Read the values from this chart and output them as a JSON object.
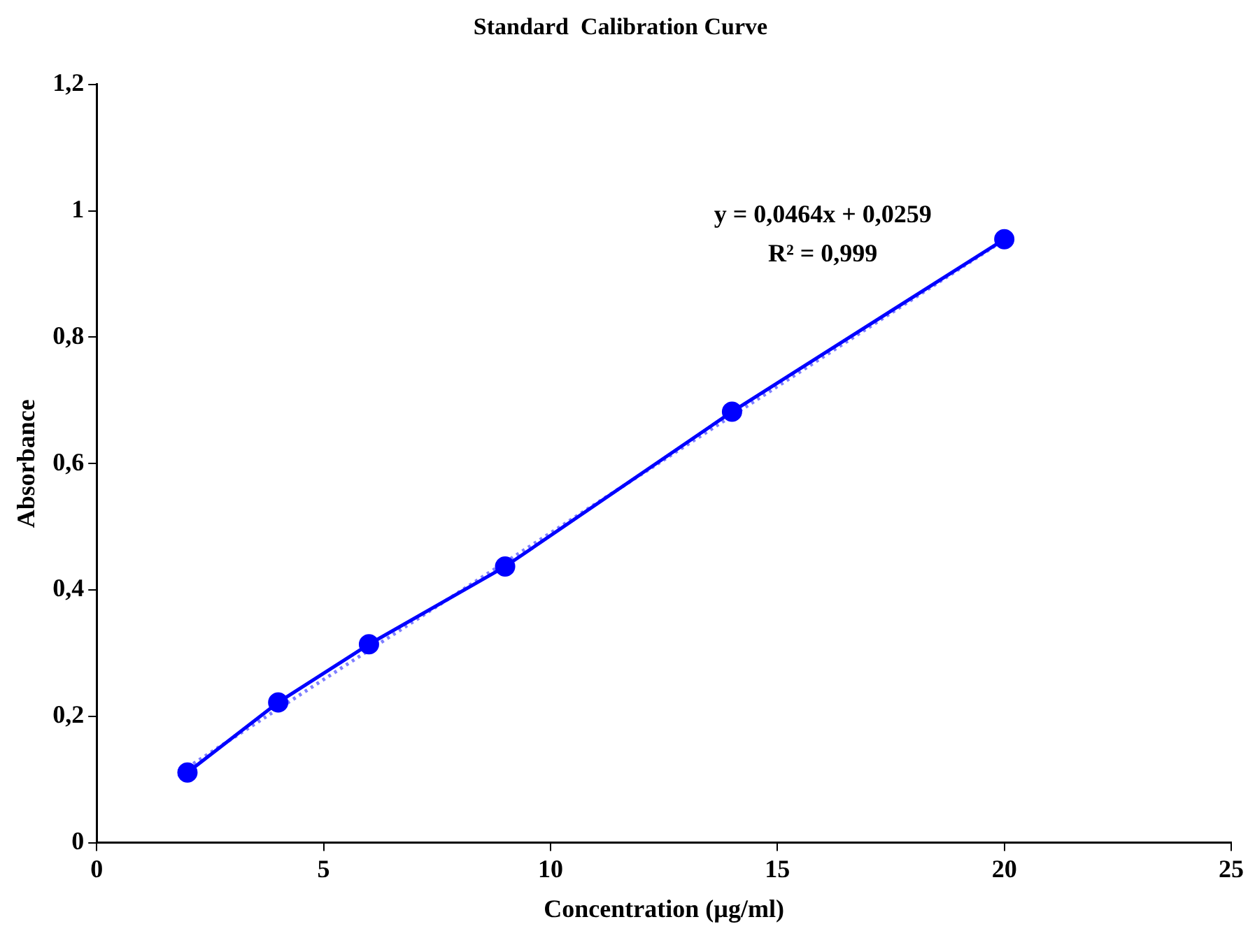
{
  "chart_data": {
    "type": "line",
    "title": "Standard  Calibration Curve",
    "xlabel": "Concentration (µg/ml)",
    "ylabel": "Absorbance",
    "xlim": [
      0,
      25
    ],
    "xticks": [
      0,
      5,
      10,
      15,
      20,
      25
    ],
    "ylim": [
      0,
      1.2
    ],
    "yticks": [
      0,
      {
        "value": 0.2,
        "label": "0,2"
      },
      {
        "value": 0.4,
        "label": "0,4"
      },
      {
        "value": 0.6,
        "label": "0,6"
      },
      {
        "value": 0.8,
        "label": "0,8"
      },
      1,
      {
        "value": 1.2,
        "label": "1,2"
      }
    ],
    "grid": false,
    "legend": false,
    "marker": "circle",
    "series": [
      {
        "color": "#0000ff",
        "x": [
          2,
          4,
          6,
          9,
          14,
          20
        ],
        "values": [
          0.111,
          0.222,
          0.314,
          0.437,
          0.682,
          0.955
        ],
        "line_style": "solid"
      },
      {
        "type": "line",
        "color": "#7f7fff",
        "x": [
          2,
          20
        ],
        "values": [
          0.119,
          0.954
        ],
        "marker": "none",
        "line_style": "dotted"
      }
    ],
    "annotations": [
      "y = 0,0464x + 0,0259",
      "R² = 0,999"
    ]
  }
}
